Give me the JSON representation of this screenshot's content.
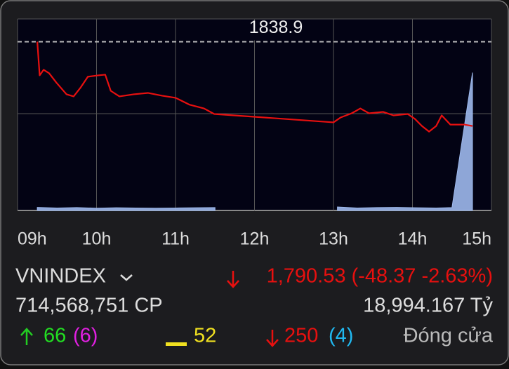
{
  "chart_data": {
    "type": "line",
    "xlim": [
      9,
      15
    ],
    "xticks": [
      {
        "value": 9,
        "label": "09h"
      },
      {
        "value": 10,
        "label": "10h"
      },
      {
        "value": 11,
        "label": "11h"
      },
      {
        "value": 12,
        "label": "12h"
      },
      {
        "value": 13,
        "label": "13h"
      },
      {
        "value": 14,
        "label": "14h"
      },
      {
        "value": 15,
        "label": "15h"
      }
    ],
    "ylim": [
      1742,
      1852
    ],
    "reference": 1838.9,
    "series": [
      {
        "color": "#e8100f",
        "x": [
          9.25,
          9.28,
          9.33,
          9.4,
          9.49,
          9.62,
          9.71,
          9.8,
          9.89,
          10.02,
          10.11,
          10.18,
          10.29,
          10.47,
          10.65,
          10.83,
          11.0,
          11.18,
          11.36,
          11.49,
          13.0,
          13.09,
          13.23,
          13.34,
          13.45,
          13.63,
          13.76,
          13.94,
          14.03,
          14.12,
          14.21,
          14.3,
          14.37,
          14.48,
          14.66,
          14.76
        ],
        "values": [
          1838.9,
          1819.6,
          1822.8,
          1820.8,
          1815.5,
          1808.7,
          1807.5,
          1812.7,
          1818.8,
          1819.6,
          1820.0,
          1810.7,
          1807.5,
          1808.7,
          1809.5,
          1807.9,
          1806.7,
          1802.7,
          1800.6,
          1797.4,
          1792.6,
          1795.4,
          1797.8,
          1800.6,
          1797.8,
          1798.6,
          1796.6,
          1797.4,
          1794.6,
          1790.5,
          1787.3,
          1790.5,
          1796.6,
          1791.3,
          1791.3,
          1790.5
        ]
      }
    ],
    "volume": {
      "color": "#9db8ec",
      "ylim": [
        0,
        100
      ],
      "x": [
        9.25,
        9.5,
        9.75,
        10,
        10.25,
        10.5,
        10.75,
        11,
        11.25,
        11.5,
        12,
        13.05,
        13.3,
        13.55,
        13.8,
        14.05,
        14.3,
        14.5,
        14.76
      ],
      "values": [
        1.6,
        1.3,
        1.5,
        1.2,
        1.4,
        1.3,
        1.2,
        1.3,
        1.4,
        1.5,
        null,
        1.8,
        1.3,
        1.5,
        1.6,
        1.4,
        1.3,
        1.5,
        72
      ]
    }
  },
  "info": {
    "index": "VNINDEX",
    "change": "1,790.53 (-48.37 -2.63%)",
    "volume": "714,568,751 CP",
    "value": "18,994.167 Tỷ",
    "up": "66",
    "up_ceiling": "(6)",
    "flat": "52",
    "down": "250",
    "down_floor": "(4)",
    "status": "Đóng cửa"
  }
}
